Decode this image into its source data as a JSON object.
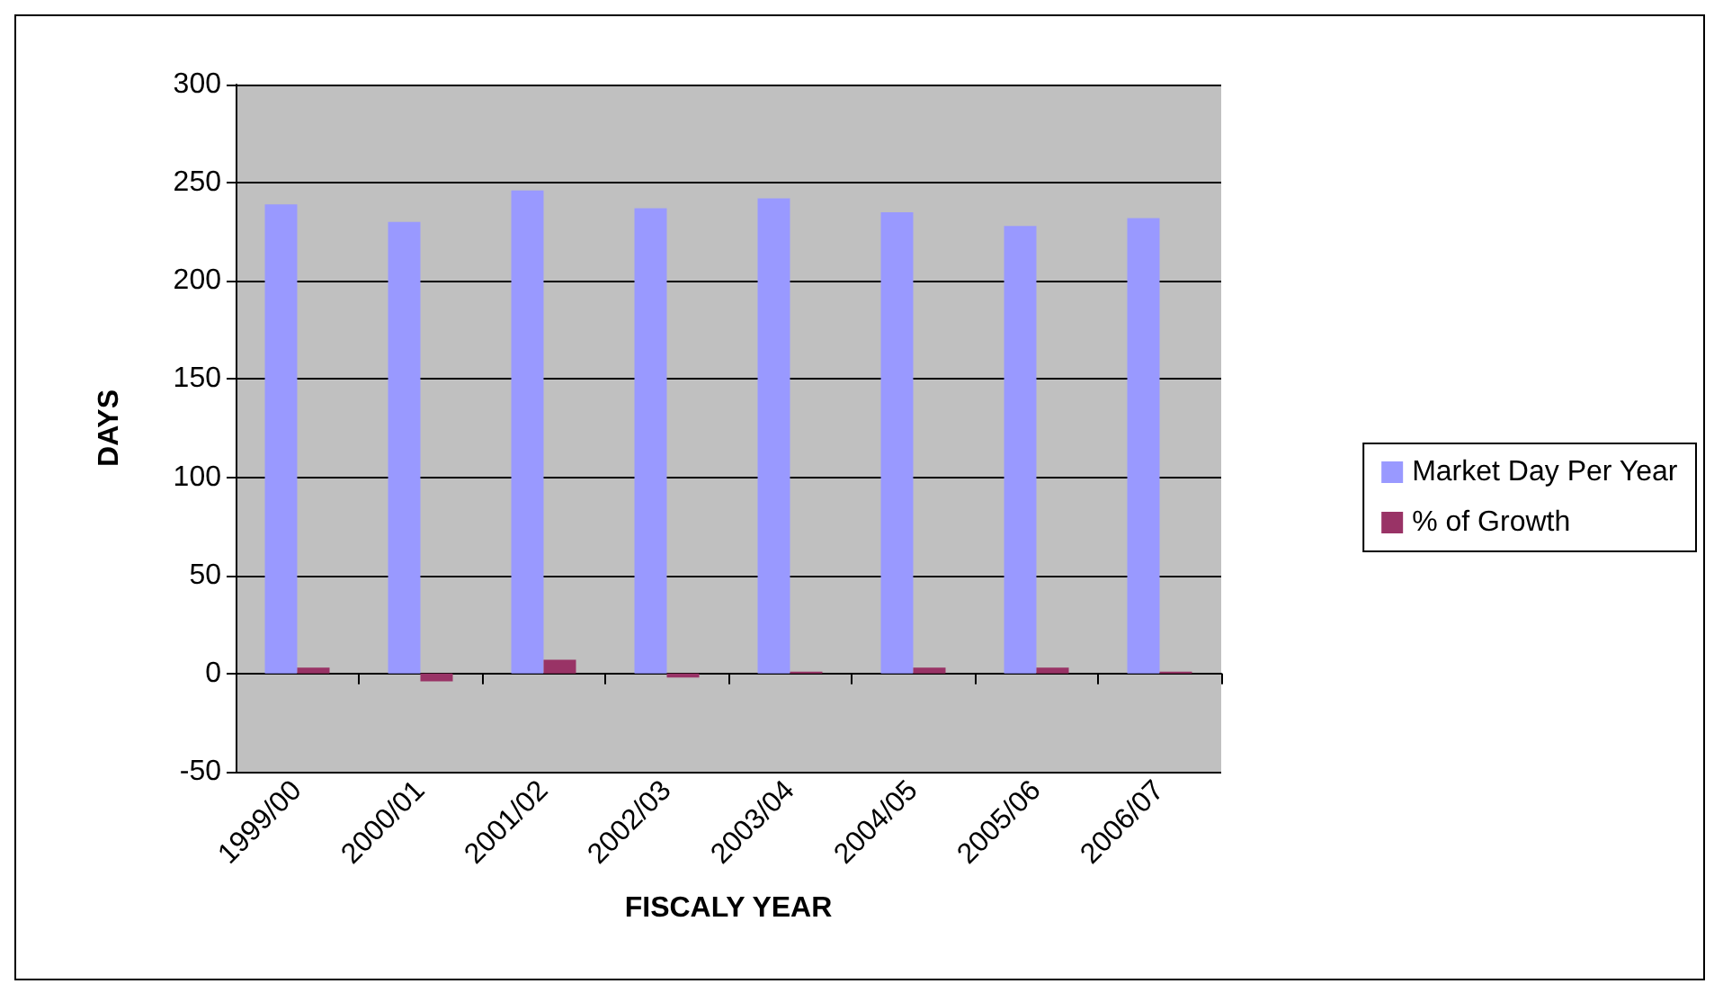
{
  "chart_data": {
    "type": "bar",
    "xlabel": "FISCALY YEAR",
    "ylabel": "DAYS",
    "categories": [
      "1999/00",
      "2000/01",
      "2001/02",
      "2002/03",
      "2003/04",
      "2004/05",
      "2005/06",
      "2006/07"
    ],
    "series": [
      {
        "name": "Market Day Per Year",
        "color": "#9999ff",
        "values": [
          239,
          230,
          246,
          237,
          242,
          235,
          228,
          232
        ]
      },
      {
        "name": "% of Growth",
        "color": "#993366",
        "values": [
          3,
          -4,
          7,
          -2,
          1,
          3,
          3,
          1
        ]
      }
    ],
    "ylim": [
      -50,
      300
    ],
    "yticks": [
      -50,
      0,
      50,
      100,
      150,
      200,
      250,
      300
    ],
    "grid": "y",
    "legend": "right"
  }
}
